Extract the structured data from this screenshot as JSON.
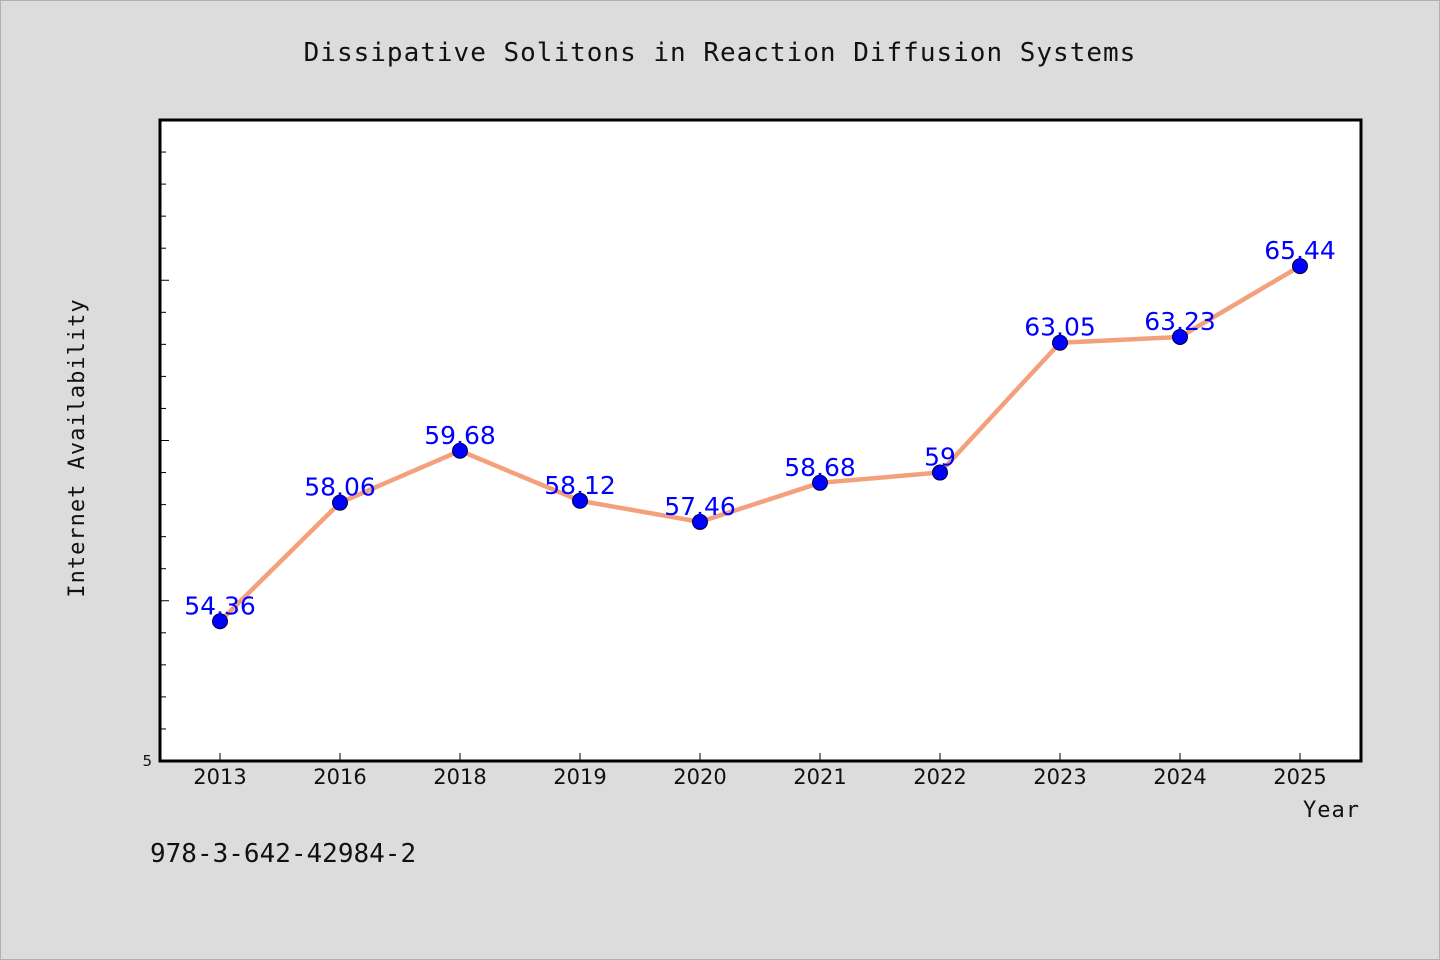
{
  "chart_data": {
    "type": "line",
    "title": "Dissipative Solitons in Reaction Diffusion Systems",
    "xlabel": "Year",
    "ylabel": "Internet Availability",
    "categories": [
      "2013",
      "2016",
      "2018",
      "2019",
      "2020",
      "2021",
      "2022",
      "2023",
      "2024",
      "2025"
    ],
    "series": [
      {
        "values": [
          54.36,
          58.06,
          59.68,
          58.12,
          57.46,
          58.68,
          59.0,
          63.05,
          63.23,
          65.44
        ],
        "data_labels": [
          "54.36",
          "58.06",
          "59.68",
          "58.12",
          "57.46",
          "58.68",
          "59",
          "63.05",
          "63.23",
          "65.44"
        ],
        "line_color": "#f4a07c",
        "marker_color": "#0000ff"
      }
    ],
    "ylim": [
      50,
      70
    ],
    "y_ticks_labeled": [
      "5"
    ],
    "grid": false,
    "legend": "none"
  },
  "footnote": "978-3-642-42984-2",
  "colors": {
    "background": "#dcdcdc",
    "plot_area": "#ffffff",
    "line": "#f4a07c",
    "marker": "#0000ff",
    "data_label": "#0000ff"
  }
}
